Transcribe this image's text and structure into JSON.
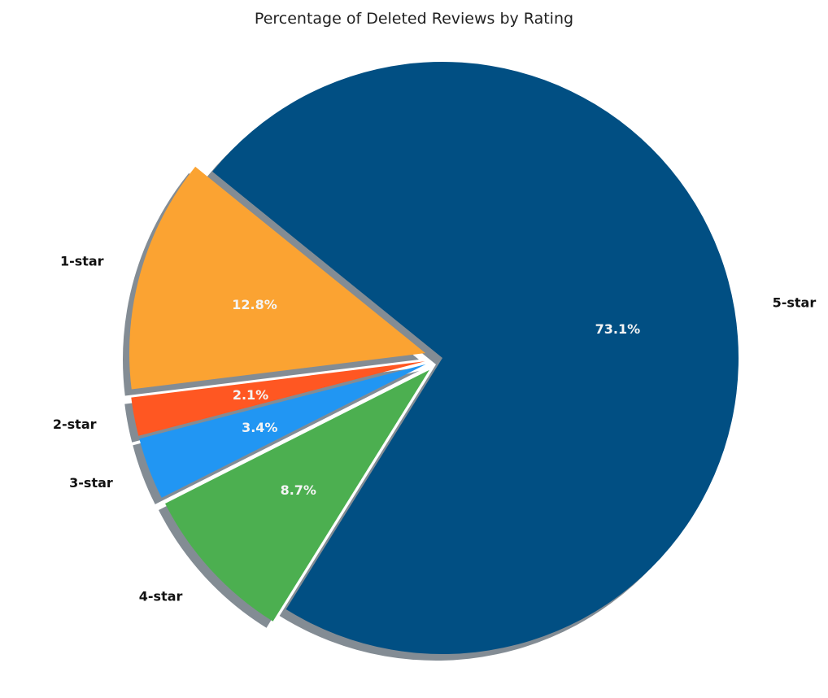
{
  "chart_data": {
    "type": "pie",
    "title": "Percentage of Deleted Reviews by Rating",
    "categories": [
      "1-star",
      "2-star",
      "3-star",
      "4-star",
      "5-star"
    ],
    "values": [
      12.8,
      2.1,
      3.4,
      8.7,
      73.1
    ],
    "value_labels": [
      "12.8%",
      "2.1%",
      "3.4%",
      "8.7%",
      "73.1%"
    ],
    "colors": [
      "#FBA332",
      "#FF5722",
      "#2196F3",
      "#4CAF50",
      "#014F83"
    ],
    "explode": [
      0.2,
      0.2,
      0.2,
      0.2,
      0
    ],
    "shadow": true,
    "start_angle_deg": 141,
    "legend": "none"
  },
  "title": "Percentage of Deleted Reviews by Rating"
}
